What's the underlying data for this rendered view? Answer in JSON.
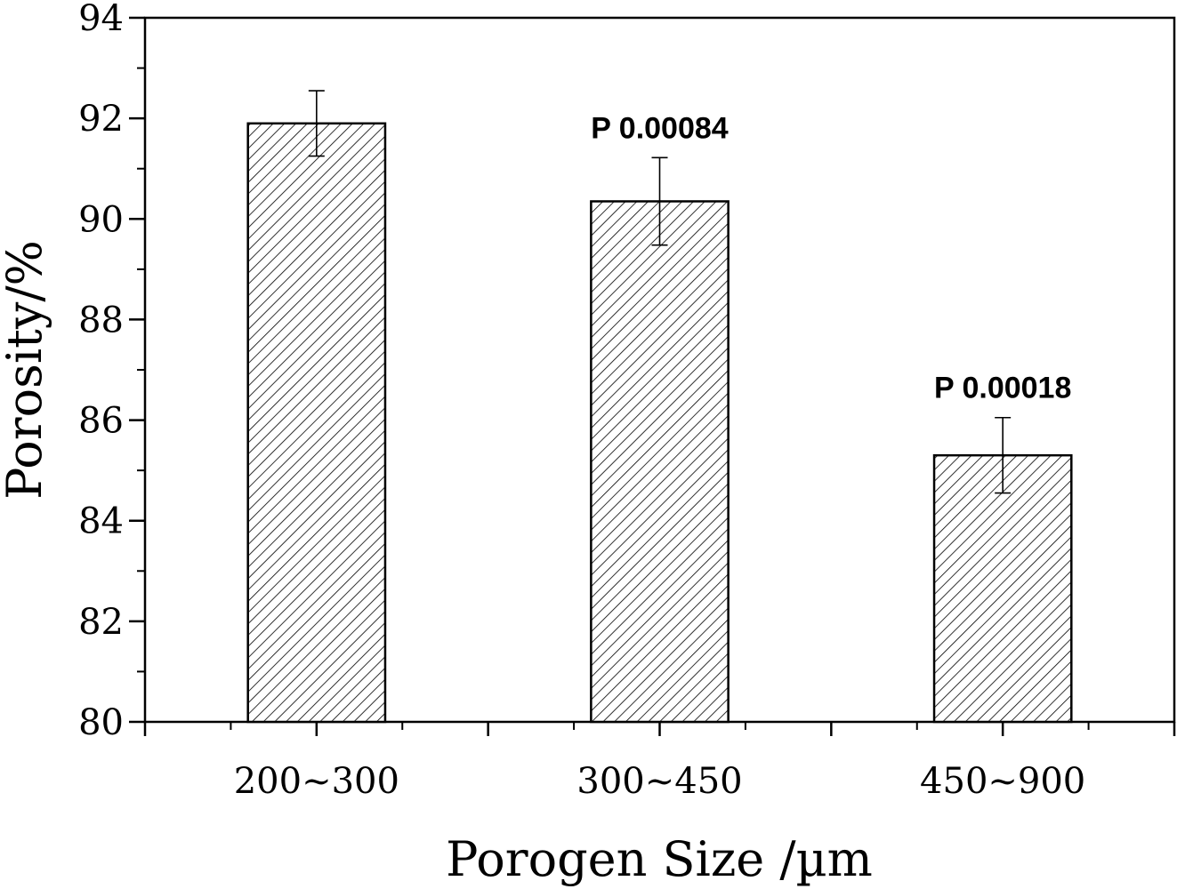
{
  "chart_data": {
    "type": "bar",
    "title": "",
    "xlabel": "Porogen Size /µm",
    "ylabel": "Porosity/%",
    "categories": [
      "200~300",
      "300~450",
      "450~900"
    ],
    "values": [
      91.9,
      90.35,
      85.3
    ],
    "errors": [
      0.65,
      0.87,
      0.75
    ],
    "annotations": [
      "",
      "P 0.00084",
      "P 0.00018"
    ],
    "ylim": [
      80,
      94
    ],
    "yticks": [
      "80",
      "82",
      "84",
      "86",
      "88",
      "90",
      "92",
      "94"
    ],
    "grid": false,
    "legend": "none",
    "bar_pattern": "diagonal-hatch",
    "bar_color": "#000000"
  }
}
